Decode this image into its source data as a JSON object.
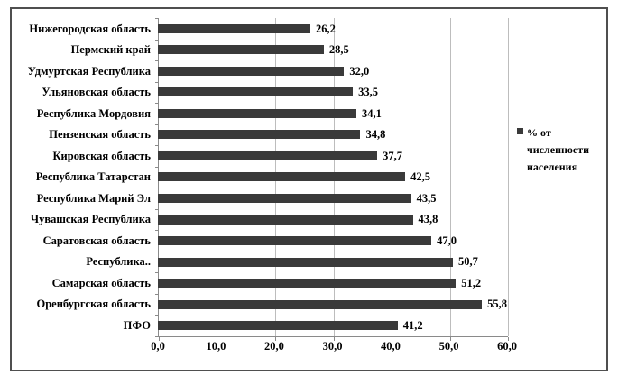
{
  "chart_data": {
    "type": "bar",
    "orientation": "horizontal",
    "title": "",
    "xlabel": "",
    "ylabel": "",
    "categories": [
      "Нижегородская область",
      "Пермский край",
      "Удмуртская Республика",
      "Ульяновская область",
      "Республика Мордовия",
      "Пензенская область",
      "Кировская область",
      "Республика Татарстан",
      "Республика Марий Эл",
      "Чувашская Республика",
      "Саратовская область",
      "Республика..",
      "Самарская область",
      "Оренбургская область",
      "ПФО"
    ],
    "values": [
      26.2,
      28.5,
      32.0,
      33.5,
      34.1,
      34.8,
      37.7,
      42.5,
      43.5,
      43.8,
      47.0,
      50.7,
      51.2,
      55.8,
      41.2
    ],
    "value_labels": [
      "26,2",
      "28,5",
      "32,0",
      "33,5",
      "34,1",
      "34,8",
      "37,7",
      "42,5",
      "43,5",
      "43,8",
      "47,0",
      "50,7",
      "51,2",
      "55,8",
      "41,2"
    ],
    "xlim": [
      0,
      60
    ],
    "x_ticks": [
      "0,0",
      "10,0",
      "20,0",
      "30,0",
      "40,0",
      "50,0",
      "60,0"
    ],
    "grid": "vertical-gridlines-on",
    "legend_position": "right",
    "legend": {
      "label": "% от численности населения",
      "marker_color": "#3a3a3a"
    },
    "bar_color": "#3a3a3a",
    "gridline_color": "#bdbdbd",
    "axis_color": "#8a8a8a"
  }
}
